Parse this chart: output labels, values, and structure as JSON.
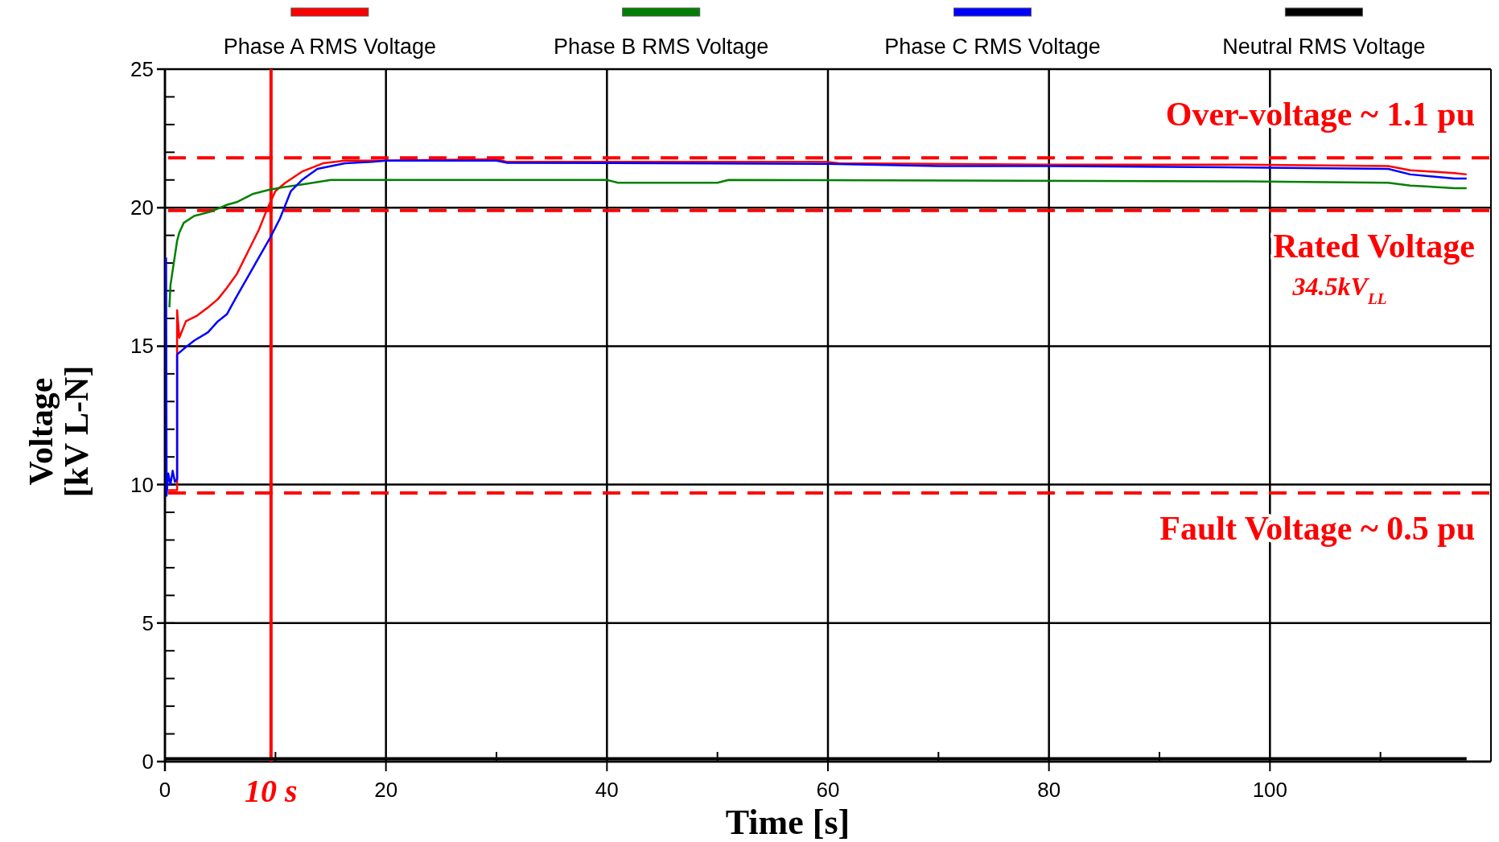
{
  "chart_data": {
    "type": "line",
    "xlabel": "Time [s]",
    "ylabel": "Voltage\n[kV L-N]",
    "xlim": [
      0,
      120
    ],
    "ylim": [
      0,
      25
    ],
    "xticks": [
      0,
      {
        "value": 10,
        "label": null
      },
      20,
      {
        "value": 30,
        "label": null
      },
      40,
      {
        "value": 50,
        "label": null
      },
      60,
      {
        "value": 70,
        "label": null
      },
      80,
      {
        "value": 90,
        "label": null
      },
      100,
      {
        "value": 110,
        "label": null
      }
    ],
    "yticks": [
      0,
      {
        "value": 1,
        "label": null
      },
      {
        "value": 2,
        "label": null
      },
      {
        "value": 3,
        "label": null
      },
      {
        "value": 4,
        "label": null
      },
      5,
      {
        "value": 6,
        "label": null
      },
      {
        "value": 7,
        "label": null
      },
      {
        "value": 8,
        "label": null
      },
      {
        "value": 9,
        "label": null
      },
      10,
      {
        "value": 11,
        "label": null
      },
      {
        "value": 12,
        "label": null
      },
      {
        "value": 13,
        "label": null
      },
      {
        "value": 14,
        "label": null
      },
      15,
      {
        "value": 16,
        "label": null
      },
      {
        "value": 17,
        "label": null
      },
      {
        "value": 18,
        "label": null
      },
      {
        "value": 19,
        "label": null
      },
      20,
      {
        "value": 21,
        "label": null
      },
      {
        "value": 22,
        "label": null
      },
      {
        "value": 23,
        "label": null
      },
      {
        "value": 24,
        "label": null
      },
      25
    ],
    "grid": true,
    "legend": "top",
    "marker": "none",
    "line_style": "solid",
    "series": [
      {
        "name": "Phase A RMS Voltage",
        "color": "#ff0000",
        "x": [
          0.3,
          1.1,
          1.1,
          1.3,
          1.9,
          2.9,
          3.9,
          4.8,
          5.6,
          6.5,
          7.5,
          8.5,
          9.2,
          10,
          10.9,
          12.4,
          14.3,
          16.3,
          20,
          30,
          31,
          60,
          61,
          80,
          97.7,
          110.7,
          112.7,
          116.7,
          117.8
        ],
        "values": [
          9.8,
          9.8,
          16.3,
          15.3,
          15.9,
          16.1,
          16.4,
          16.7,
          17.1,
          17.6,
          18.4,
          19.2,
          19.9,
          20.6,
          20.9,
          21.3,
          21.6,
          21.7,
          21.7,
          21.75,
          21.65,
          21.65,
          21.6,
          21.55,
          21.55,
          21.5,
          21.35,
          21.25,
          21.2
        ]
      },
      {
        "name": "Phase B RMS Voltage",
        "color": "#008000",
        "x": [
          0.4,
          0.5,
          1.1,
          1.3,
          1.7,
          2.65,
          4.1,
          5.6,
          6.5,
          8,
          9.5,
          10.9,
          12.6,
          15,
          40,
          41,
          50,
          51,
          97.7,
          110.7,
          112.7,
          116.7,
          117.8
        ],
        "values": [
          16.4,
          17.2,
          18.8,
          19.1,
          19.45,
          19.7,
          19.85,
          20.1,
          20.2,
          20.5,
          20.65,
          20.75,
          20.85,
          21.0,
          21.0,
          20.9,
          20.9,
          21.0,
          20.95,
          20.9,
          20.8,
          20.7,
          20.7
        ]
      },
      {
        "name": "Phase C RMS Voltage",
        "color": "#0000ff",
        "x": [
          0.1,
          0.15,
          0.3,
          0.5,
          0.7,
          0.9,
          1.1,
          1.1,
          1.7,
          2.65,
          3.9,
          4.8,
          5.6,
          6.5,
          7.5,
          8.5,
          9.5,
          10.4,
          11.4,
          12.4,
          13.8,
          16.3,
          18.7,
          20,
          30,
          31,
          60,
          70,
          80,
          97.7,
          110.7,
          112.7,
          116.7,
          117.8
        ],
        "values": [
          18.2,
          9.6,
          10.4,
          10,
          10.5,
          10.1,
          10.2,
          14.7,
          14.9,
          15.2,
          15.5,
          15.9,
          16.15,
          16.8,
          17.5,
          18.2,
          18.9,
          19.6,
          20.6,
          21.0,
          21.4,
          21.6,
          21.65,
          21.7,
          21.7,
          21.62,
          21.58,
          21.5,
          21.5,
          21.45,
          21.4,
          21.2,
          21.05,
          21.05
        ]
      },
      {
        "name": "Neutral RMS Voltage",
        "color": "#000000",
        "x": [
          0,
          117.8
        ],
        "values": [
          0.1,
          0.1
        ]
      }
    ],
    "ref_lines": [
      {
        "axis": "y",
        "value": 21.8,
        "label": "Over-voltage ~ 1.1 pu",
        "color": "#ff0000",
        "line_style": "dashed"
      },
      {
        "axis": "y",
        "value": 19.9,
        "label": "Rated Voltage",
        "color": "#ff0000",
        "line_style": "dashed"
      },
      {
        "axis": "y",
        "value": 9.7,
        "label": "Fault Voltage ~ 0.5 pu",
        "color": "#ff0000",
        "line_style": "dashed"
      },
      {
        "axis": "x",
        "value": 9.6,
        "label": "10 s",
        "color": "#ff0000",
        "line_style": "solid"
      }
    ],
    "annotations": [
      "34.5kV$_{LL}$"
    ]
  }
}
